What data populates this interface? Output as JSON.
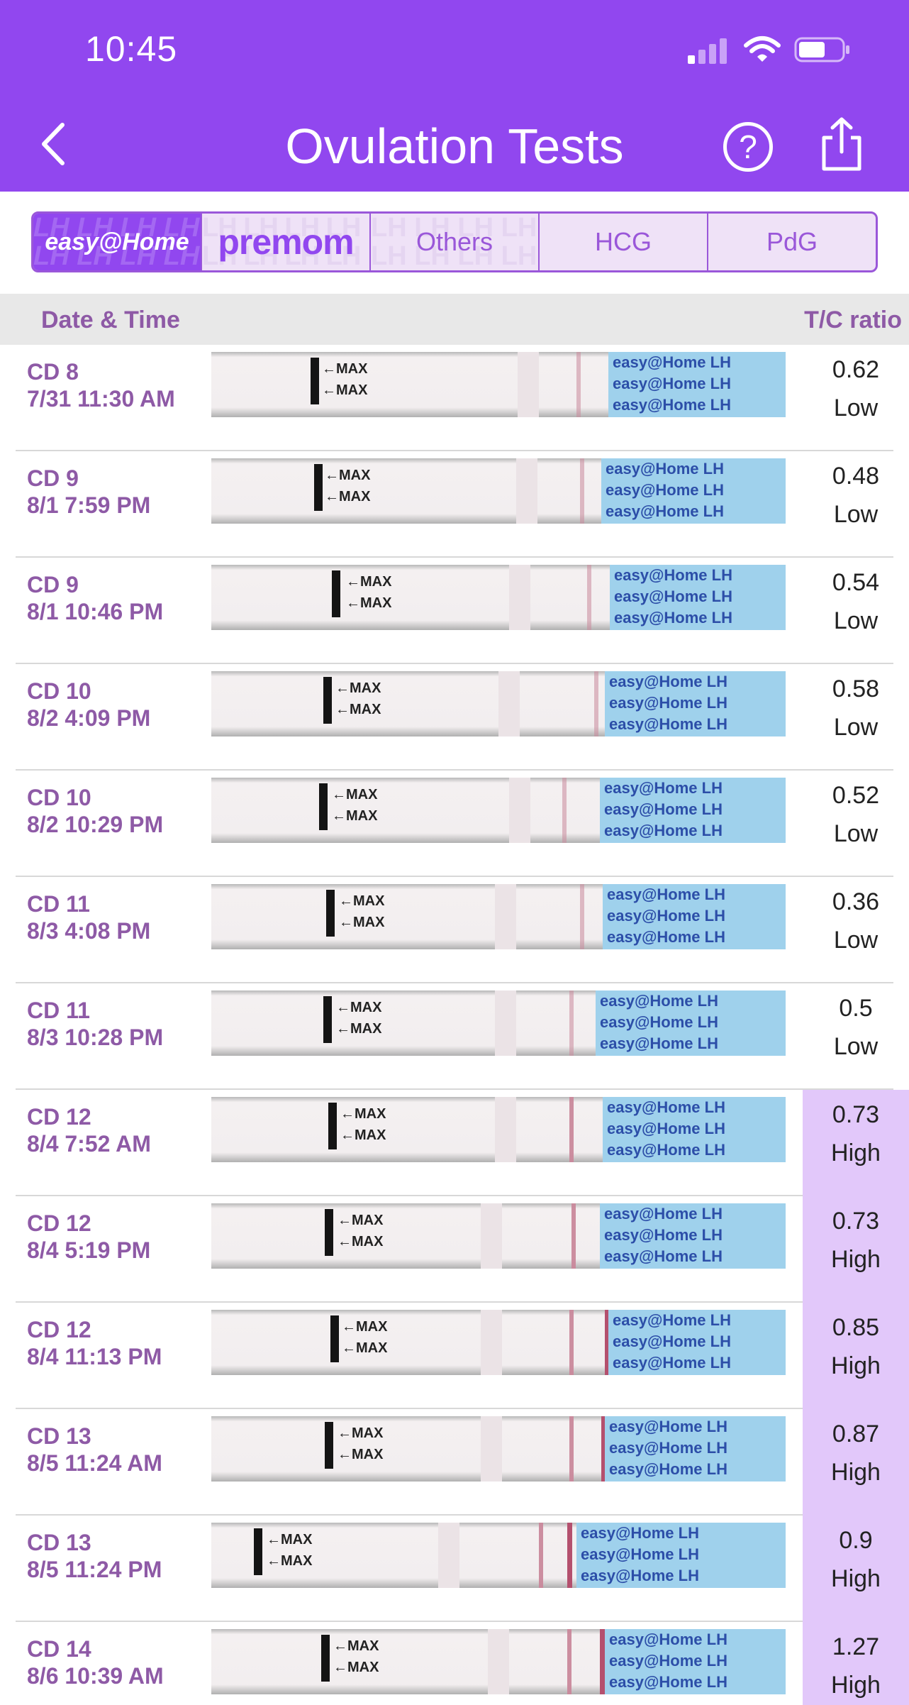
{
  "status_bar": {
    "time": "10:45"
  },
  "header": {
    "title": "Ovulation Tests",
    "help_label": "?"
  },
  "tabs": [
    {
      "label": "easy@Home",
      "active": true
    },
    {
      "label": "premom",
      "active": false
    },
    {
      "label": "Others",
      "active": false
    },
    {
      "label": "HCG",
      "active": false
    },
    {
      "label": "PdG",
      "active": false
    }
  ],
  "table": {
    "col_date": "Date & Time",
    "col_ratio": "T/C ratio",
    "strip_text": {
      "max": "←MAX",
      "brand": "easy@Home LH"
    },
    "rows": [
      {
        "cd": "CD 8",
        "datetime": "7/31 11:30 AM",
        "ratio": "0.62",
        "level": "Low"
      },
      {
        "cd": "CD 9",
        "datetime": "8/1 7:59 PM",
        "ratio": "0.48",
        "level": "Low"
      },
      {
        "cd": "CD 9",
        "datetime": "8/1 10:46 PM",
        "ratio": "0.54",
        "level": "Low"
      },
      {
        "cd": "CD 10",
        "datetime": "8/2 4:09 PM",
        "ratio": "0.58",
        "level": "Low"
      },
      {
        "cd": "CD 10",
        "datetime": "8/2 10:29 PM",
        "ratio": "0.52",
        "level": "Low"
      },
      {
        "cd": "CD 11",
        "datetime": "8/3 4:08 PM",
        "ratio": "0.36",
        "level": "Low"
      },
      {
        "cd": "CD 11",
        "datetime": "8/3 10:28 PM",
        "ratio": "0.5",
        "level": "Low"
      },
      {
        "cd": "CD 12",
        "datetime": "8/4 7:52 AM",
        "ratio": "0.73",
        "level": "High"
      },
      {
        "cd": "CD 12",
        "datetime": "8/4 5:19 PM",
        "ratio": "0.73",
        "level": "High"
      },
      {
        "cd": "CD 12",
        "datetime": "8/4 11:13 PM",
        "ratio": "0.85",
        "level": "High"
      },
      {
        "cd": "CD 13",
        "datetime": "8/5 11:24 AM",
        "ratio": "0.87",
        "level": "High"
      },
      {
        "cd": "CD 13",
        "datetime": "8/5 11:24 PM",
        "ratio": "0.9",
        "level": "High"
      },
      {
        "cd": "CD 14",
        "datetime": "8/6 10:39 AM",
        "ratio": "1.27",
        "level": "High"
      }
    ]
  },
  "colors": {
    "brand_purple": "#9147ef",
    "high_bg": "#e2c8fa",
    "text_purple": "#8e5aa6"
  }
}
